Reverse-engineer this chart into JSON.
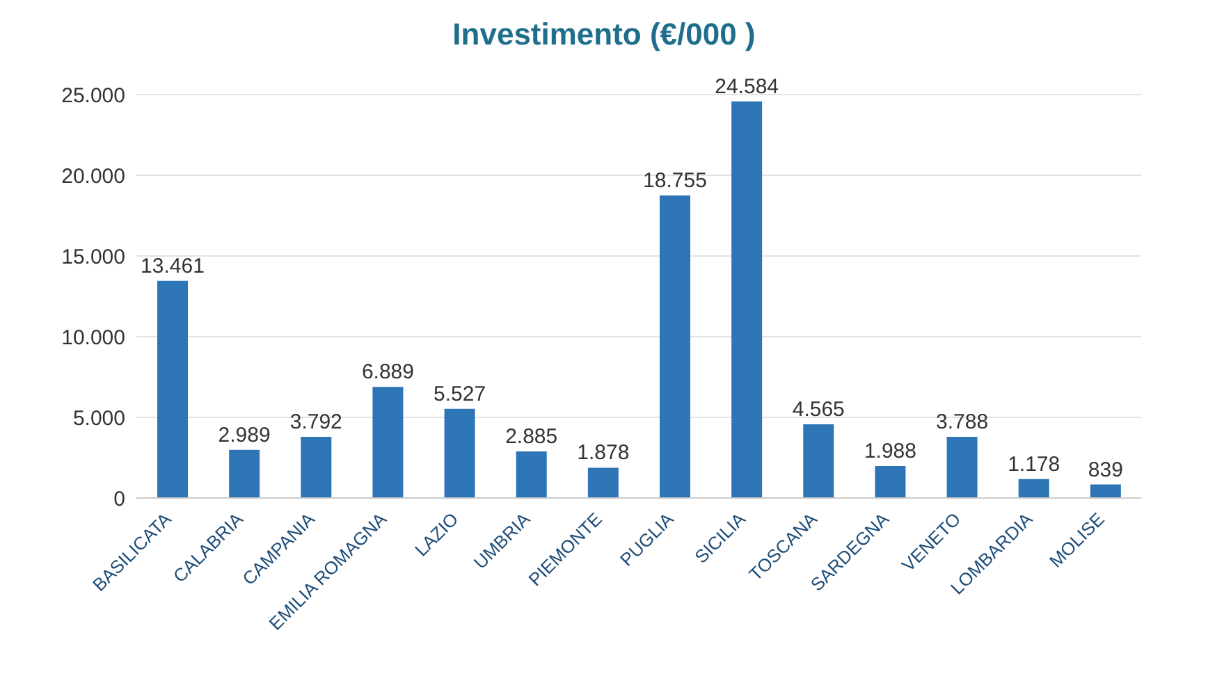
{
  "chart_data": {
    "type": "bar",
    "title": "Investimento (€/000 )",
    "categories": [
      "BASILICATA",
      "CALABRIA",
      "CAMPANIA",
      "EMILIA ROMAGNA",
      "LAZIO",
      "UMBRIA",
      "PIEMONTE",
      "PUGLIA",
      "SICILIA",
      "TOSCANA",
      "SARDEGNA",
      "VENETO",
      "LOMBARDIA",
      "MOLISE"
    ],
    "values": [
      13461,
      2989,
      3792,
      6889,
      5527,
      2885,
      1878,
      18755,
      24584,
      4565,
      1988,
      3788,
      1178,
      839
    ],
    "value_labels": [
      "13.461",
      "2.989",
      "3.792",
      "6.889",
      "5.527",
      "2.885",
      "1.878",
      "18.755",
      "24.584",
      "4.565",
      "1.988",
      "3.788",
      "1.178",
      "839"
    ],
    "color": "#2e75b6",
    "ylim": [
      0,
      25000
    ],
    "yticks": [
      {
        "value": 0,
        "label": "0"
      },
      {
        "value": 5000,
        "label": "5.000"
      },
      {
        "value": 10000,
        "label": "10.000"
      },
      {
        "value": 15000,
        "label": "15.000"
      },
      {
        "value": 20000,
        "label": "20.000"
      },
      {
        "value": 25000,
        "label": "25.000"
      }
    ],
    "grid": "y",
    "legend": false
  }
}
